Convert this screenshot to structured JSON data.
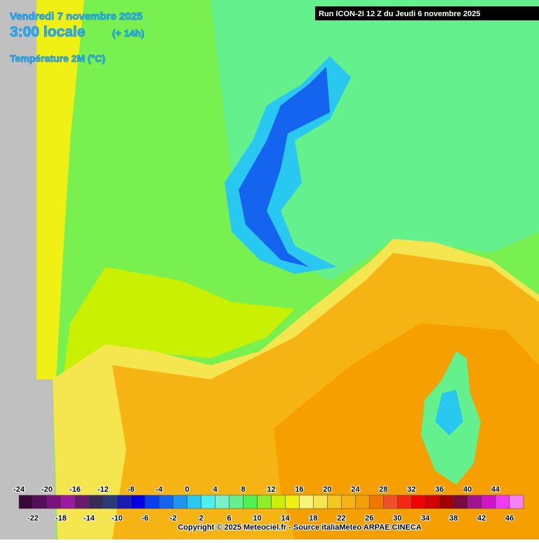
{
  "header": {
    "date": "Vendredi 7 novembre 2025",
    "time": "3:00 locale",
    "offset": "(+ 14h)",
    "variable": "Température 2M (°C)",
    "run": "Run ICON-2I 12 Z du Jeudi 6 novembre 2025"
  },
  "legend": {
    "items": [
      {
        "value": -24,
        "color": "#3a0a3a"
      },
      {
        "value": -22,
        "color": "#560e5a"
      },
      {
        "value": -20,
        "color": "#7a127a"
      },
      {
        "value": -18,
        "color": "#9a1aa0"
      },
      {
        "value": -16,
        "color": "#6a1a6a"
      },
      {
        "value": -14,
        "color": "#3a2a5a"
      },
      {
        "value": -12,
        "color": "#283c78"
      },
      {
        "value": -10,
        "color": "#1a1ab4"
      },
      {
        "value": -8,
        "color": "#0000e0"
      },
      {
        "value": -6,
        "color": "#0a3cf0"
      },
      {
        "value": -4,
        "color": "#1464f0"
      },
      {
        "value": -2,
        "color": "#1e96f0"
      },
      {
        "value": 0,
        "color": "#28c8f0"
      },
      {
        "value": 2,
        "color": "#50f0f0"
      },
      {
        "value": 4,
        "color": "#78f0c8"
      },
      {
        "value": 6,
        "color": "#64f08c"
      },
      {
        "value": 8,
        "color": "#50f050"
      },
      {
        "value": 10,
        "color": "#8cf028"
      },
      {
        "value": 12,
        "color": "#c8f000"
      },
      {
        "value": 14,
        "color": "#f0f014"
      },
      {
        "value": 16,
        "color": "#f5f578"
      },
      {
        "value": 18,
        "color": "#f5e650"
      },
      {
        "value": 20,
        "color": "#f0c81e"
      },
      {
        "value": 22,
        "color": "#f5b414"
      },
      {
        "value": 24,
        "color": "#f5a000"
      },
      {
        "value": 26,
        "color": "#f07800"
      },
      {
        "value": 28,
        "color": "#f05028"
      },
      {
        "value": 30,
        "color": "#f02814"
      },
      {
        "value": 32,
        "color": "#f00000"
      },
      {
        "value": 34,
        "color": "#d20000"
      },
      {
        "value": 36,
        "color": "#a00000"
      },
      {
        "value": 38,
        "color": "#780a3c"
      },
      {
        "value": 40,
        "color": "#a0148c"
      },
      {
        "value": 42,
        "color": "#d214c8"
      },
      {
        "value": 44,
        "color": "#f03cf0"
      },
      {
        "value": 46,
        "color": "#f582f5"
      }
    ]
  },
  "footer": {
    "copyright": "Copyright © 2025 Meteociel.fr - Source italiaMeteo ARPAE CINECA"
  }
}
